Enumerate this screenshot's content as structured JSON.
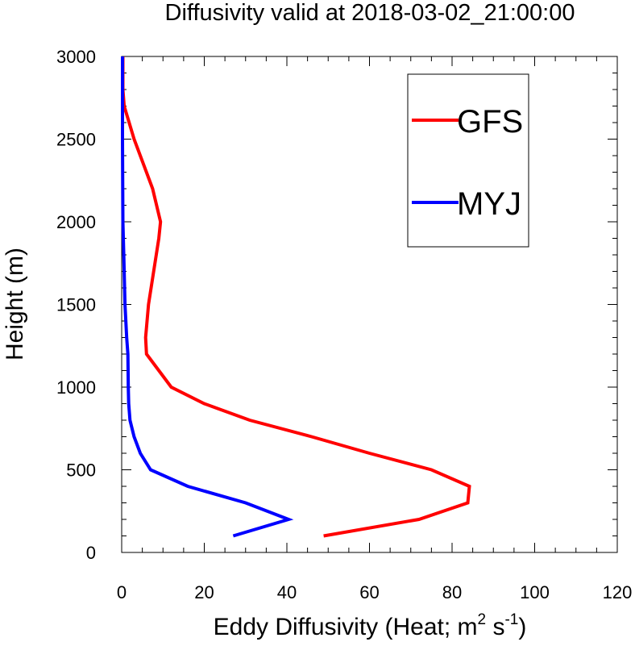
{
  "chart_data": {
    "type": "line",
    "title": "Diffusivity valid at 2018-03-02_21:00:00",
    "xlabel_main": "Eddy Diffusivity (Heat; m",
    "xlabel_sup1": "2",
    "xlabel_mid": " s",
    "xlabel_sup2": "-1",
    "xlabel_end": ")",
    "ylabel": "Height (m)",
    "xlim": [
      0,
      120
    ],
    "ylim": [
      0,
      3000
    ],
    "xticks": [
      0,
      20,
      40,
      60,
      80,
      100,
      120
    ],
    "yticks": [
      0,
      500,
      1000,
      1500,
      2000,
      2500,
      3000
    ],
    "xtick_labels": [
      "0",
      "20",
      "40",
      "60",
      "80",
      "100",
      "120"
    ],
    "ytick_labels": [
      "0",
      "500",
      "1000",
      "1500",
      "2000",
      "2500",
      "3000"
    ],
    "grid": false,
    "legend_position": "top-right",
    "series": [
      {
        "name": "GFS",
        "color": "#ff0000",
        "points": [
          [
            48.9,
            100
          ],
          [
            72,
            200
          ],
          [
            83.8,
            300
          ],
          [
            84.2,
            400
          ],
          [
            75,
            500
          ],
          [
            60,
            600
          ],
          [
            46,
            700
          ],
          [
            31,
            800
          ],
          [
            20,
            900
          ],
          [
            12,
            1000
          ],
          [
            6,
            1200
          ],
          [
            5.8,
            1300
          ],
          [
            6.5,
            1500
          ],
          [
            9,
            1900
          ],
          [
            9.4,
            2000
          ],
          [
            7.5,
            2200
          ],
          [
            3,
            2500
          ],
          [
            0.6,
            2700
          ],
          [
            0.3,
            2800
          ],
          [
            0.3,
            3000
          ]
        ]
      },
      {
        "name": "MYJ",
        "color": "#0000ff",
        "points": [
          [
            27,
            100
          ],
          [
            40.4,
            200
          ],
          [
            30,
            300
          ],
          [
            16,
            400
          ],
          [
            7,
            500
          ],
          [
            4.5,
            600
          ],
          [
            3,
            700
          ],
          [
            2,
            800
          ],
          [
            1.7,
            900
          ],
          [
            1.6,
            1000
          ],
          [
            1.5,
            1200
          ],
          [
            1.2,
            1300
          ],
          [
            0.8,
            1500
          ],
          [
            0.5,
            1800
          ],
          [
            0.3,
            2000
          ],
          [
            0.2,
            2500
          ],
          [
            0.2,
            3000
          ]
        ]
      }
    ]
  }
}
